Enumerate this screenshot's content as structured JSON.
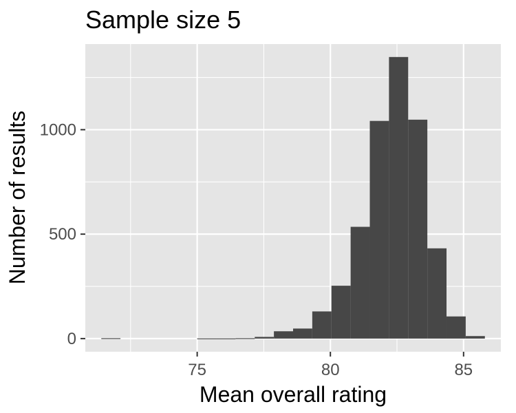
{
  "chart_data": {
    "type": "bar",
    "title": "Sample size 5",
    "xlabel": "Mean overall rating",
    "ylabel": "Number of results",
    "xlim": [
      70.8,
      86.4
    ],
    "ylim": [
      -63,
      1410
    ],
    "x_ticks": [
      75,
      80,
      85
    ],
    "x_tick_labels": [
      "75",
      "80",
      "85"
    ],
    "y_ticks": [
      0,
      500,
      1000
    ],
    "y_tick_labels": [
      "0",
      "500",
      "1000"
    ],
    "grid": true,
    "bin_width": 0.72,
    "bins": [
      {
        "x0": 71.4,
        "x1": 72.12,
        "count": 2
      },
      {
        "x0": 72.12,
        "x1": 72.84,
        "count": 0
      },
      {
        "x0": 72.84,
        "x1": 73.56,
        "count": 0
      },
      {
        "x0": 73.56,
        "x1": 74.28,
        "count": 0
      },
      {
        "x0": 74.28,
        "x1": 75.0,
        "count": 0
      },
      {
        "x0": 75.0,
        "x1": 75.72,
        "count": 1
      },
      {
        "x0": 75.72,
        "x1": 76.44,
        "count": 1
      },
      {
        "x0": 76.44,
        "x1": 77.16,
        "count": 2
      },
      {
        "x0": 77.16,
        "x1": 77.88,
        "count": 8
      },
      {
        "x0": 77.88,
        "x1": 78.6,
        "count": 35
      },
      {
        "x0": 78.6,
        "x1": 79.32,
        "count": 48
      },
      {
        "x0": 79.32,
        "x1": 80.04,
        "count": 130
      },
      {
        "x0": 80.04,
        "x1": 80.76,
        "count": 253
      },
      {
        "x0": 80.76,
        "x1": 81.48,
        "count": 535
      },
      {
        "x0": 81.48,
        "x1": 82.2,
        "count": 1042
      },
      {
        "x0": 82.2,
        "x1": 82.92,
        "count": 1348
      },
      {
        "x0": 82.92,
        "x1": 83.64,
        "count": 1048
      },
      {
        "x0": 83.64,
        "x1": 84.36,
        "count": 432
      },
      {
        "x0": 84.36,
        "x1": 85.08,
        "count": 106
      },
      {
        "x0": 85.08,
        "x1": 85.8,
        "count": 12
      }
    ]
  }
}
